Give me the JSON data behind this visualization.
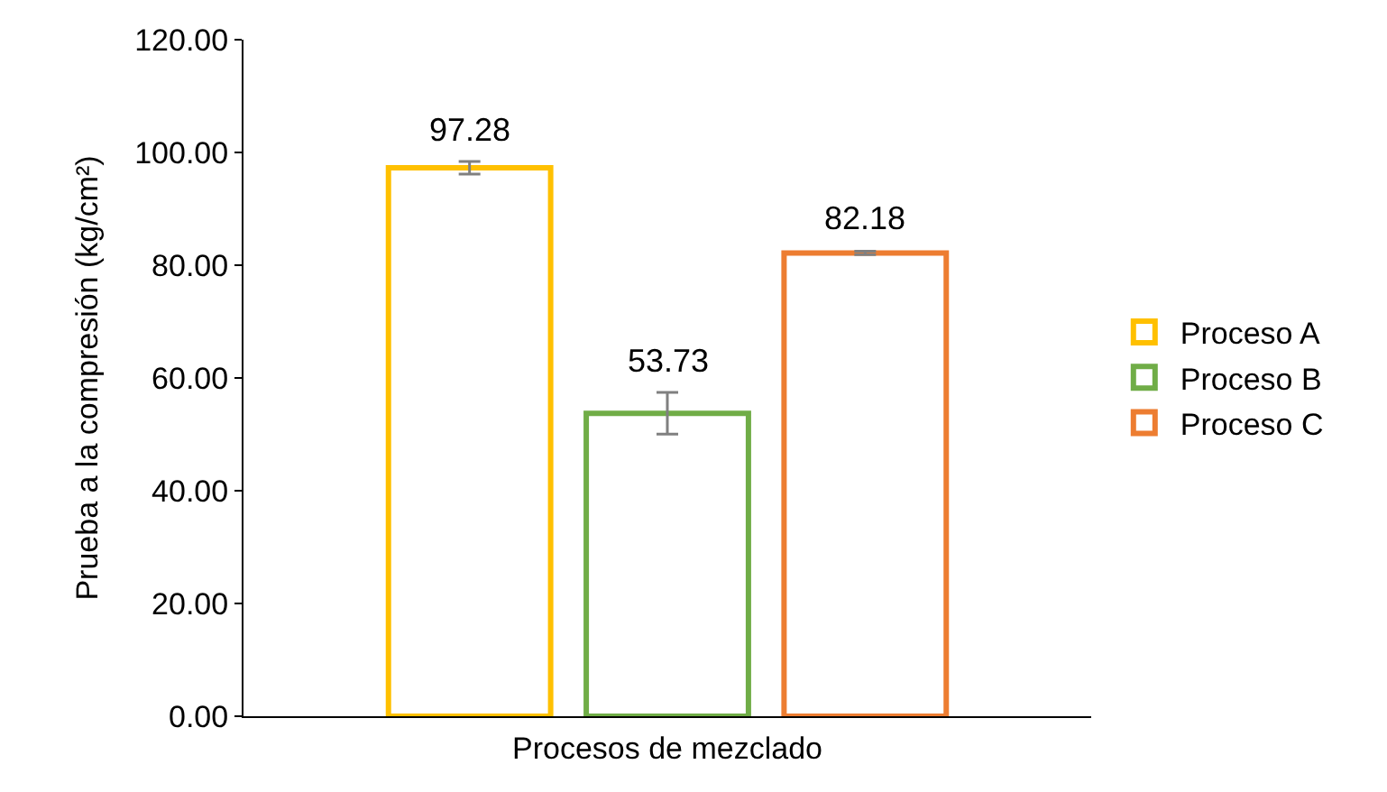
{
  "chart_data": {
    "type": "bar",
    "ylabel": "Prueba a la compresión (kg/cm²)",
    "xlabel": "Procesos de mezclado",
    "categories": [
      null
    ],
    "series": [
      {
        "name": "Proceso A",
        "color": "#ffc000",
        "values": [
          97.28
        ],
        "errors": [
          1.1
        ]
      },
      {
        "name": "Proceso B",
        "color": "#70ad47",
        "values": [
          53.73
        ],
        "errors": [
          3.7
        ]
      },
      {
        "name": "Proceso C",
        "color": "#ed7d31",
        "values": [
          82.18
        ],
        "errors": [
          0.3
        ]
      }
    ],
    "ylim": [
      0,
      120
    ],
    "yticks": [
      {
        "value": 0,
        "label": "0.00"
      },
      {
        "value": 20,
        "label": "20.00"
      },
      {
        "value": 40,
        "label": "40.00"
      },
      {
        "value": 60,
        "label": "60.00"
      },
      {
        "value": 80,
        "label": "80.00"
      },
      {
        "value": 100,
        "label": "100.00"
      },
      {
        "value": 120,
        "label": "120.00"
      }
    ],
    "data_labels": true,
    "grid": false,
    "legend": "right"
  }
}
